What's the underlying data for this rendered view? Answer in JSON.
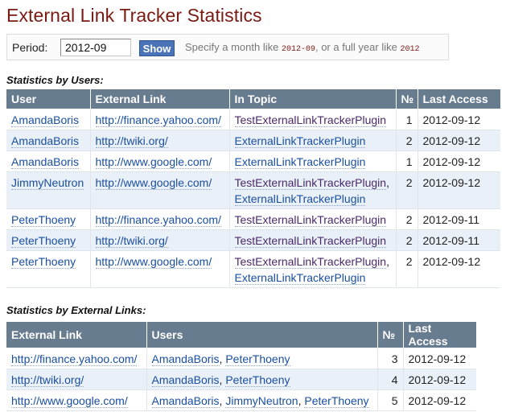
{
  "title": "External Link Tracker Statistics",
  "period": {
    "label": "Period:",
    "value": "2012-09",
    "show_button": "Show",
    "hint_prefix": "Specify a month like ",
    "hint_month": "2012-09",
    "hint_middle": ", or a full year like ",
    "hint_year": "2012"
  },
  "users_section": {
    "heading": "Statistics by Users:",
    "headers": {
      "user": "User",
      "link": "External Link",
      "topic": "In Topic",
      "count": "№",
      "last": "Last Access"
    },
    "rows": [
      {
        "user": "AmandaBoris",
        "link": "http://finance.yahoo.com/",
        "topics": [
          "TestExternalLinkTrackerPlugin"
        ],
        "count": "1",
        "last": "2012-09-12"
      },
      {
        "user": "AmandaBoris",
        "link": "http://twiki.org/",
        "topics": [
          "ExternalLinkTrackerPlugin"
        ],
        "count": "2",
        "last": "2012-09-12"
      },
      {
        "user": "AmandaBoris",
        "link": "http://www.google.com/",
        "topics": [
          "ExternalLinkTrackerPlugin"
        ],
        "count": "1",
        "last": "2012-09-12"
      },
      {
        "user": "JimmyNeutron",
        "link": "http://www.google.com/",
        "topics": [
          "TestExternalLinkTrackerPlugin",
          "ExternalLinkTrackerPlugin"
        ],
        "count": "2",
        "last": "2012-09-12"
      },
      {
        "user": "PeterThoeny",
        "link": "http://finance.yahoo.com/",
        "topics": [
          "TestExternalLinkTrackerPlugin"
        ],
        "count": "2",
        "last": "2012-09-11"
      },
      {
        "user": "PeterThoeny",
        "link": "http://twiki.org/",
        "topics": [
          "TestExternalLinkTrackerPlugin"
        ],
        "count": "2",
        "last": "2012-09-11"
      },
      {
        "user": "PeterThoeny",
        "link": "http://www.google.com/",
        "topics": [
          "TestExternalLinkTrackerPlugin",
          "ExternalLinkTrackerPlugin"
        ],
        "count": "2",
        "last": "2012-09-12"
      }
    ]
  },
  "links_section": {
    "heading": "Statistics by External Links:",
    "headers": {
      "link": "External Link",
      "users": "Users",
      "count": "№",
      "last": "Last Access"
    },
    "rows": [
      {
        "link": "http://finance.yahoo.com/",
        "users": [
          "AmandaBoris",
          "PeterThoeny"
        ],
        "count": "3",
        "last": "2012-09-12"
      },
      {
        "link": "http://twiki.org/",
        "users": [
          "AmandaBoris",
          "PeterThoeny"
        ],
        "count": "4",
        "last": "2012-09-12"
      },
      {
        "link": "http://www.google.com/",
        "users": [
          "AmandaBoris",
          "JimmyNeutron",
          "PeterThoeny"
        ],
        "count": "5",
        "last": "2012-09-12"
      }
    ]
  },
  "colors": {
    "title": "#7a1a12",
    "header_bg": "#687c90",
    "link": "#1a4fa0",
    "row_alt": "#eaf0f8"
  }
}
